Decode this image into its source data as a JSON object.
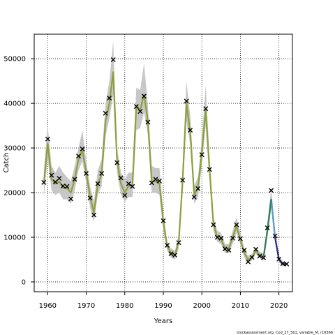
{
  "chart_data": {
    "type": "line",
    "xlabel": "Years",
    "ylabel": "Catch",
    "xlim": [
      1956.5,
      2023.5
    ],
    "ylim": [
      -2200,
      55500
    ],
    "xticks": [
      1960,
      1970,
      1980,
      1990,
      2000,
      2010,
      2020
    ],
    "yticks": [
      0,
      10000,
      20000,
      30000,
      40000,
      50000
    ],
    "grid": true,
    "credit": "stockassessment.org, Cod_27_5b1, variable_M, r16566",
    "colors": {
      "fit_line": "#8ca03c",
      "confidence_band": "#c4c4c4",
      "observed_marker": "#000000",
      "segment_2017_2019": "#5b9fc8",
      "segment_2016_2018": "#2e7d5b",
      "segment_2019_2022": "#2e2a8c"
    },
    "series": [
      {
        "name": "",
        "role": "fitted",
        "x": [
          1959,
          1960,
          1961,
          1962,
          1963,
          1964,
          1965,
          1966,
          1967,
          1968,
          1969,
          1970,
          1971,
          1972,
          1973,
          1974,
          1975,
          1976,
          1977,
          1978,
          1979,
          1980,
          1981,
          1982,
          1983,
          1984,
          1985,
          1986,
          1987,
          1988,
          1989,
          1990,
          1991,
          1992,
          1993,
          1994,
          1995,
          1996,
          1997,
          1998,
          1999,
          2000,
          2001,
          2002,
          2003,
          2004,
          2005,
          2006,
          2007,
          2008,
          2009,
          2010,
          2011,
          2012,
          2013,
          2014,
          2015,
          2016,
          2017,
          2018,
          2019,
          2020,
          2021,
          2022
        ],
        "y": [
          22000,
          31000,
          23000,
          22000,
          22500,
          21000,
          21000,
          20000,
          23000,
          27500,
          29500,
          24500,
          19000,
          15500,
          22000,
          24000,
          36000,
          40000,
          47000,
          27000,
          22000,
          20000,
          21500,
          21500,
          39500,
          38500,
          42000,
          36000,
          22500,
          22500,
          22000,
          13500,
          8000,
          6500,
          6000,
          9000,
          22500,
          40000,
          33500,
          19500,
          21000,
          29000,
          38500,
          25000,
          13000,
          10000,
          9500,
          7500,
          7500,
          10000,
          12500,
          9500,
          6500,
          5000,
          5500,
          7000,
          6000,
          5500,
          11500,
          18500,
          10000,
          5000,
          4000,
          4000
        ],
        "lower": [
          19000,
          27500,
          20500,
          19500,
          20000,
          18500,
          18500,
          17500,
          20500,
          25000,
          27000,
          22000,
          16500,
          13500,
          19500,
          21500,
          32500,
          36500,
          42000,
          24500,
          19500,
          18000,
          19000,
          19000,
          34000,
          34500,
          38000,
          33000,
          20000,
          20000,
          19500,
          11500,
          7000,
          5500,
          5000,
          7500,
          20000,
          36000,
          30500,
          17500,
          19000,
          26000,
          35000,
          22500,
          11500,
          9000,
          8500,
          6500,
          6500,
          8500,
          11000,
          8500,
          5500,
          4300,
          4800,
          6300,
          5300,
          4800,
          10000,
          16500,
          9000,
          4400,
          3500,
          3500
        ],
        "upper": [
          25000,
          35000,
          26000,
          24500,
          26000,
          24500,
          23500,
          22500,
          26000,
          30000,
          34000,
          27000,
          21500,
          18000,
          25000,
          27500,
          40000,
          45000,
          54000,
          30000,
          24500,
          23000,
          24500,
          24500,
          43500,
          43000,
          49000,
          39500,
          26000,
          25500,
          25500,
          15500,
          9000,
          7500,
          7000,
          10500,
          25500,
          45000,
          37000,
          21500,
          23500,
          32000,
          44000,
          28000,
          14500,
          11500,
          11000,
          8500,
          8500,
          11500,
          14500,
          11000,
          7500,
          5800,
          6200,
          7800,
          6800,
          6300,
          13000,
          21000,
          11500,
          5800,
          4600,
          4500
        ]
      },
      {
        "name": "",
        "role": "observed",
        "x": [
          1959,
          1960,
          1961,
          1962,
          1963,
          1964,
          1965,
          1966,
          1967,
          1968,
          1969,
          1970,
          1971,
          1972,
          1973,
          1974,
          1975,
          1976,
          1977,
          1978,
          1979,
          1980,
          1981,
          1982,
          1983,
          1984,
          1985,
          1986,
          1987,
          1988,
          1989,
          1990,
          1991,
          1992,
          1993,
          1994,
          1995,
          1996,
          1997,
          1998,
          1999,
          2000,
          2001,
          2002,
          2003,
          2004,
          2005,
          2006,
          2007,
          2008,
          2009,
          2010,
          2011,
          2012,
          2013,
          2014,
          2015,
          2016,
          2017,
          2018,
          2019,
          2020,
          2021,
          2022
        ],
        "y": [
          22300,
          32000,
          23900,
          22400,
          23200,
          21500,
          21400,
          18600,
          23000,
          28200,
          29800,
          24300,
          18800,
          15000,
          22000,
          24300,
          37800,
          41200,
          49800,
          26700,
          23300,
          19400,
          22000,
          21400,
          39300,
          38200,
          41600,
          35800,
          22200,
          23000,
          22600,
          13700,
          8200,
          6300,
          6000,
          8800,
          22800,
          40500,
          34000,
          19000,
          20900,
          28500,
          38800,
          25200,
          12800,
          10000,
          9800,
          7400,
          7100,
          9800,
          12800,
          9700,
          7100,
          4500,
          5500,
          7300,
          5800,
          5400,
          12100,
          20500,
          10300,
          5100,
          4100,
          4000
        ]
      },
      {
        "name": "",
        "role": "segment_2017_2019",
        "x": [
          2017,
          2018,
          2019
        ],
        "y": [
          11500,
          18500,
          10000
        ]
      },
      {
        "name": "",
        "role": "segment_2016_2018",
        "x": [
          2016,
          2017,
          2018
        ],
        "y": [
          5500,
          11500,
          18500
        ]
      },
      {
        "name": "",
        "role": "segment_2019_2022",
        "x": [
          2019,
          2020,
          2021,
          2022
        ],
        "y": [
          10000,
          5000,
          4000,
          4000
        ]
      }
    ]
  }
}
